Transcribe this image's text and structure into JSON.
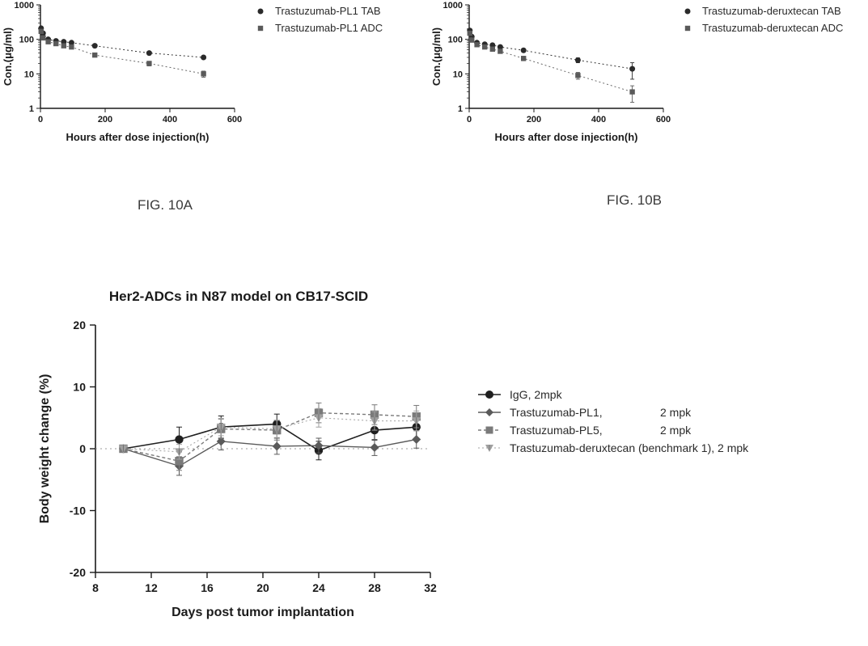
{
  "top_left": {
    "type": "line",
    "caption": "FIG. 10A",
    "xlabel": "Hours after dose injection(h)",
    "ylabel": "Con.(μg/ml)",
    "x_axis": {
      "lim": [
        0,
        600
      ],
      "ticks": [
        0,
        200,
        400,
        600
      ],
      "fontsize": 11,
      "label_fontsize": 13
    },
    "y_axis": {
      "scale": "log",
      "lim": [
        1,
        1000
      ],
      "ticks": [
        1,
        10,
        100,
        1000
      ],
      "fontsize": 11,
      "label_fontsize": 13
    },
    "colors": {
      "axis": "#1a1a1a",
      "text": "#1a1a1a",
      "bg": "#ffffff"
    },
    "series": [
      {
        "name": "Trastuzumab-PL1 TAB",
        "marker": "circle",
        "marker_fill": "#2a2a2a",
        "marker_size": 3.5,
        "line_color": "#333333",
        "dash": "2,3",
        "x": [
          2,
          8,
          24,
          48,
          72,
          96,
          168,
          336,
          504
        ],
        "y": [
          210,
          150,
          100,
          90,
          85,
          80,
          65,
          40,
          30
        ],
        "yerr": [
          20,
          12,
          8,
          7,
          7,
          6,
          5,
          4,
          3
        ]
      },
      {
        "name": "Trastuzumab-PL1 ADC",
        "marker": "square",
        "marker_fill": "#5a5a5a",
        "marker_size": 3.2,
        "line_color": "#6a6a6a",
        "dash": "2,3",
        "x": [
          2,
          8,
          24,
          48,
          72,
          96,
          168,
          336,
          504
        ],
        "y": [
          170,
          110,
          85,
          75,
          65,
          60,
          35,
          20,
          10
        ],
        "yerr": [
          15,
          10,
          7,
          6,
          5,
          5,
          3,
          3,
          2
        ]
      }
    ],
    "legend": {
      "items": [
        "Trastuzumab-PL1 TAB",
        "Trastuzumab-PL1 ADC"
      ]
    }
  },
  "top_right": {
    "type": "line",
    "caption": "FIG. 10B",
    "xlabel": "Hours after dose injection(h)",
    "ylabel": "Con.(μg/ml)",
    "x_axis": {
      "lim": [
        0,
        600
      ],
      "ticks": [
        0,
        200,
        400,
        600
      ],
      "fontsize": 11,
      "label_fontsize": 13
    },
    "y_axis": {
      "scale": "log",
      "lim": [
        1,
        1000
      ],
      "ticks": [
        1,
        10,
        100,
        1000
      ],
      "fontsize": 11,
      "label_fontsize": 13
    },
    "colors": {
      "axis": "#1a1a1a",
      "text": "#1a1a1a",
      "bg": "#ffffff"
    },
    "series": [
      {
        "name": "Trastuzumab-deruxtecan TAB",
        "marker": "circle",
        "marker_fill": "#2a2a2a",
        "marker_size": 3.5,
        "line_color": "#333333",
        "dash": "2,3",
        "x": [
          2,
          8,
          24,
          48,
          72,
          96,
          168,
          336,
          504
        ],
        "y": [
          180,
          120,
          80,
          72,
          68,
          60,
          48,
          25,
          14
        ],
        "yerr": [
          20,
          12,
          8,
          7,
          6,
          6,
          5,
          4,
          7
        ]
      },
      {
        "name": "Trastuzumab-deruxtecan ADC",
        "marker": "square",
        "marker_fill": "#5a5a5a",
        "marker_size": 3.2,
        "line_color": "#6a6a6a",
        "dash": "2,3",
        "x": [
          2,
          8,
          24,
          48,
          72,
          96,
          168,
          336,
          504
        ],
        "y": [
          150,
          95,
          70,
          60,
          52,
          45,
          28,
          9,
          3
        ],
        "yerr": [
          15,
          10,
          7,
          6,
          5,
          5,
          4,
          2,
          1.5
        ]
      }
    ],
    "legend": {
      "items": [
        "Trastuzumab-deruxtecan TAB",
        "Trastuzumab-deruxtecan ADC"
      ]
    }
  },
  "bottom": {
    "type": "line",
    "title": "Her2-ADCs in N87 model on CB17-SCID",
    "xlabel": "Days post tumor implantation",
    "ylabel": "Body weight change (%)",
    "x_axis": {
      "lim": [
        8,
        32
      ],
      "ticks": [
        8,
        12,
        16,
        20,
        24,
        28,
        32
      ],
      "fontsize": 14,
      "label_fontsize": 16
    },
    "y_axis": {
      "lim": [
        -20,
        20
      ],
      "ticks": [
        -20,
        -10,
        0,
        10,
        20
      ],
      "fontsize": 14,
      "label_fontsize": 16,
      "zero_line": true
    },
    "title_fontsize": 17,
    "colors": {
      "axis": "#1a1a1a",
      "text": "#1a1a1a",
      "bg": "#ffffff",
      "zero_line": "#9a9a9a"
    },
    "series": [
      {
        "name": "IgG, 2mpk",
        "marker": "circle",
        "marker_fill": "#1f1f1f",
        "marker_size": 5.2,
        "line_color": "#1f1f1f",
        "line_width": 1.6,
        "x": [
          10,
          14,
          17,
          21,
          24,
          28,
          31
        ],
        "y": [
          0,
          1.5,
          3.5,
          4.0,
          -0.3,
          3.0,
          3.5
        ],
        "yerr": [
          0,
          2.0,
          1.8,
          1.6,
          1.5,
          1.6,
          1.8
        ]
      },
      {
        "name": "Trastuzumab-PL1",
        "dose": "2 mpk",
        "marker": "diamond",
        "marker_fill": "#5a5a5a",
        "marker_size": 5.5,
        "line_color": "#5a5a5a",
        "line_width": 1.4,
        "x": [
          10,
          14,
          17,
          21,
          24,
          28,
          31
        ],
        "y": [
          0,
          -2.8,
          1.2,
          0.4,
          0.5,
          0.2,
          1.5
        ],
        "yerr": [
          0,
          1.5,
          1.4,
          1.3,
          1.2,
          1.3,
          1.4
        ]
      },
      {
        "name": "Trastuzumab-PL5",
        "dose": "2 mpk",
        "marker": "square",
        "marker_fill": "#7a7a7a",
        "marker_size": 5.2,
        "line_color": "#7a7a7a",
        "line_width": 1.4,
        "dash": "4,3",
        "x": [
          10,
          14,
          17,
          21,
          24,
          28,
          31
        ],
        "y": [
          0,
          -2.0,
          3.2,
          3.0,
          5.8,
          5.5,
          5.2
        ],
        "yerr": [
          0,
          1.5,
          1.6,
          1.6,
          1.6,
          1.6,
          1.8
        ]
      },
      {
        "name": "Trastuzumab-deruxtecan (benchmark 1), 2 mpk",
        "marker": "tri-down",
        "marker_fill": "#a0a0a0",
        "marker_size": 5.5,
        "line_color": "#a0a0a0",
        "line_width": 1.0,
        "dash": "2,3",
        "x": [
          10,
          14,
          17,
          21,
          24,
          28,
          31
        ],
        "y": [
          0,
          -0.5,
          3.5,
          3.2,
          5.0,
          4.5,
          4.5
        ],
        "yerr": [
          0,
          1.2,
          1.4,
          1.4,
          1.5,
          1.5,
          1.6
        ]
      }
    ],
    "legend": {
      "rows": [
        {
          "label": "IgG, 2mpk",
          "dose": ""
        },
        {
          "label": "Trastuzumab-PL1,",
          "dose": "2 mpk"
        },
        {
          "label": "Trastuzumab-PL5,",
          "dose": "2 mpk"
        },
        {
          "label": "Trastuzumab-deruxtecan (benchmark 1), 2 mpk",
          "dose": ""
        }
      ]
    }
  }
}
